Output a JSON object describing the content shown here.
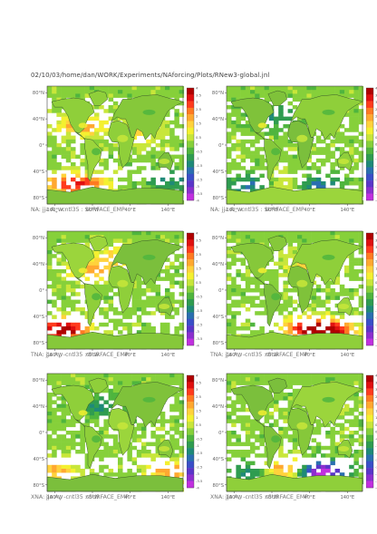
{
  "page_title": "02/10/03/home/dan/WORK/Experiments/NAforcing/Plots/RNew3-global.jnl",
  "caption_suffix": "-cntl35 : SURFACE_EMP",
  "lat_ticks": [
    "80°N",
    "40°N",
    "0°",
    "40°S",
    "80°S"
  ],
  "lon_ticks": [
    "160°W",
    "60°W",
    "40°E",
    "140°E"
  ],
  "colorbar_ticks": [
    "4",
    "3.5",
    "3",
    "2.5",
    "2",
    "1.5",
    "1",
    "0.5",
    "0",
    "-0.5",
    "-1",
    "-1.5",
    "-2",
    "-2.5",
    "-3",
    "-3.5",
    "-4"
  ],
  "colorbar_colors": [
    "#b00000",
    "#e01010",
    "#ff3b1e",
    "#ff7a22",
    "#ffa830",
    "#ffd23c",
    "#f4f030",
    "#c8e63a",
    "#86d03a",
    "#4fb53e",
    "#2f9c50",
    "#1f8a78",
    "#2a6fb0",
    "#3a4fc8",
    "#5a36c9",
    "#8c2fcf",
    "#c22fe0"
  ],
  "panels": [
    {
      "label": "NA:",
      "season": "jja",
      "var": "A",
      "sub": "+"
    },
    {
      "label": "NA:",
      "season": "jja",
      "var": "A",
      "sub": "−"
    },
    {
      "label": "TNA:",
      "season": "jja",
      "var": "A",
      "sub": "+"
    },
    {
      "label": "TNA:",
      "season": "jja",
      "var": "A",
      "sub": "−"
    },
    {
      "label": "XNA:",
      "season": "jja",
      "var": "A",
      "sub": "+"
    },
    {
      "label": "XNA:",
      "season": "jja",
      "var": "A",
      "sub": "−"
    }
  ],
  "chart_data": [
    {
      "type": "heatmap",
      "caption": "NA: jja A+ -cntl35 : SURFACE_EMP",
      "xlabel": "",
      "ylabel": "",
      "color_range": [
        -4,
        4
      ]
    },
    {
      "type": "heatmap",
      "caption": "NA: jja A- -cntl35 : SURFACE_EMP",
      "xlabel": "",
      "ylabel": "",
      "color_range": [
        -4,
        4
      ]
    },
    {
      "type": "heatmap",
      "caption": "TNA: jja A+ -cntl35 : SURFACE_EMP",
      "xlabel": "",
      "ylabel": "",
      "color_range": [
        -4,
        4
      ]
    },
    {
      "type": "heatmap",
      "caption": "TNA: jja A- -cntl35 : SURFACE_EMP",
      "xlabel": "",
      "ylabel": "",
      "color_range": [
        -4,
        4
      ]
    },
    {
      "type": "heatmap",
      "caption": "XNA: jja A+ -cntl35 : SURFACE_EMP",
      "xlabel": "",
      "ylabel": "",
      "color_range": [
        -4,
        4
      ]
    },
    {
      "type": "heatmap",
      "caption": "XNA: jja A- -cntl35 : SURFACE_EMP",
      "xlabel": "",
      "ylabel": "",
      "color_range": [
        -4,
        4
      ]
    }
  ]
}
